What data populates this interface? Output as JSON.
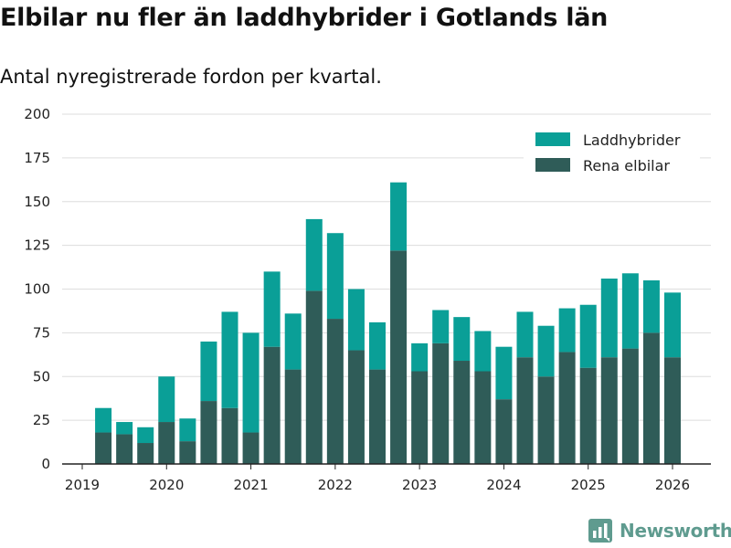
{
  "title": "Elbilar nu fler än laddhybrider i Gotlands län",
  "subtitle": "Antal nyregistrerade fordon per kvartal.",
  "brand": {
    "name": "Newsworthy",
    "icon": "newsworthy-logo-icon"
  },
  "colors": {
    "laddhybrider": "#0a9f97",
    "elbilar": "#2f5c58",
    "grid": "#dddddd",
    "axis": "#222222"
  },
  "chart_data": {
    "type": "bar",
    "stacked": true,
    "title": "Elbilar nu fler än laddhybrider i Gotlands län",
    "xlabel": "",
    "ylabel": "",
    "ylim": [
      0,
      200
    ],
    "yticks": [
      "0",
      "25",
      "50",
      "75",
      "100",
      "125",
      "150",
      "175",
      "200"
    ],
    "x_range": [
      2019.0,
      2026.25
    ],
    "xticks": [
      "2019",
      "2020",
      "2021",
      "2022",
      "2023",
      "2024",
      "2025",
      "2026"
    ],
    "legend_position": "top-right",
    "categories": [
      "2019 Q2",
      "2019 Q3",
      "2019 Q4",
      "2020 Q1",
      "2020 Q2",
      "2020 Q3",
      "2020 Q4",
      "2021 Q1",
      "2021 Q2",
      "2021 Q3",
      "2021 Q4",
      "2022 Q1",
      "2022 Q2",
      "2022 Q3",
      "2022 Q4",
      "2023 Q1",
      "2023 Q2",
      "2023 Q3",
      "2023 Q4",
      "2024 Q1",
      "2024 Q2",
      "2024 Q3",
      "2024 Q4",
      "2025 Q1",
      "2025 Q2",
      "2025 Q3",
      "2025 Q4",
      "2026 Q1"
    ],
    "x": [
      2019.25,
      2019.5,
      2019.75,
      2020.0,
      2020.25,
      2020.5,
      2020.75,
      2021.0,
      2021.25,
      2021.5,
      2021.75,
      2022.0,
      2022.25,
      2022.5,
      2022.75,
      2023.0,
      2023.25,
      2023.5,
      2023.75,
      2024.0,
      2024.25,
      2024.5,
      2024.75,
      2025.0,
      2025.25,
      2025.5,
      2025.75,
      2026.0
    ],
    "series": [
      {
        "name": "Rena elbilar",
        "values": [
          18,
          17,
          12,
          24,
          13,
          36,
          32,
          18,
          67,
          54,
          99,
          83,
          65,
          54,
          122,
          53,
          69,
          59,
          53,
          37,
          61,
          50,
          64,
          55,
          61,
          66,
          75,
          61
        ]
      },
      {
        "name": "Laddhybrider",
        "values": [
          14,
          7,
          9,
          26,
          13,
          34,
          55,
          57,
          43,
          32,
          41,
          49,
          35,
          27,
          39,
          16,
          19,
          25,
          23,
          30,
          26,
          29,
          25,
          36,
          45,
          43,
          30,
          37
        ]
      }
    ]
  }
}
